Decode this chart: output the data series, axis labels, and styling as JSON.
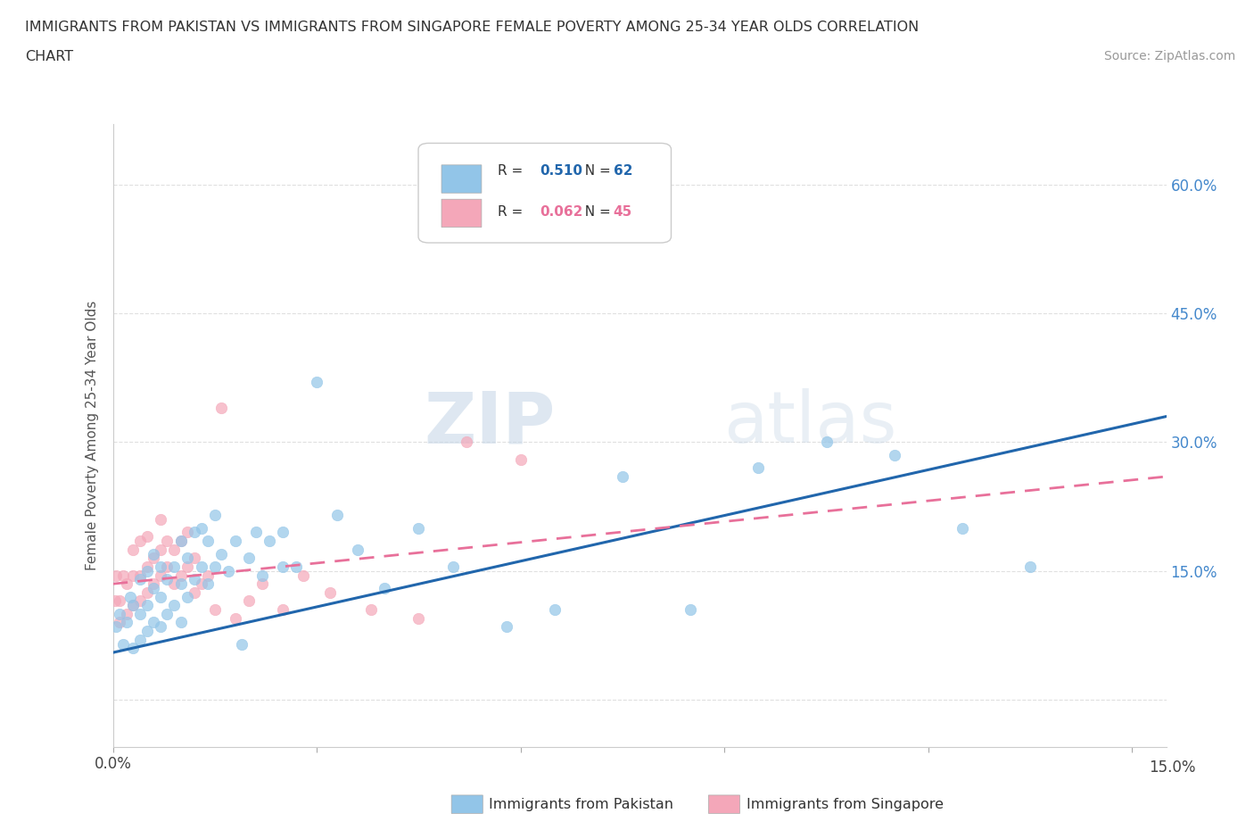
{
  "title_line1": "IMMIGRANTS FROM PAKISTAN VS IMMIGRANTS FROM SINGAPORE FEMALE POVERTY AMONG 25-34 YEAR OLDS CORRELATION",
  "title_line2": "CHART",
  "source": "Source: ZipAtlas.com",
  "xlim": [
    0.0,
    0.155
  ],
  "ylim": [
    -0.055,
    0.67
  ],
  "xticks": [
    0.0,
    0.03,
    0.06,
    0.09,
    0.12,
    0.15
  ],
  "yticks": [
    0.0,
    0.15,
    0.3,
    0.45,
    0.6
  ],
  "ytick_labels_right": [
    "",
    "15.0%",
    "30.0%",
    "45.0%",
    "60.0%"
  ],
  "pakistan_color": "#92c5e8",
  "singapore_color": "#f4a7b9",
  "pakistan_line_color": "#2166ac",
  "singapore_line_color": "#e8709a",
  "pakistan_R": 0.51,
  "pakistan_N": 62,
  "singapore_R": 0.062,
  "singapore_N": 45,
  "pakistan_scatter_x": [
    0.0005,
    0.001,
    0.0015,
    0.002,
    0.0025,
    0.003,
    0.003,
    0.004,
    0.004,
    0.004,
    0.005,
    0.005,
    0.005,
    0.006,
    0.006,
    0.006,
    0.007,
    0.007,
    0.007,
    0.008,
    0.008,
    0.009,
    0.009,
    0.01,
    0.01,
    0.01,
    0.011,
    0.011,
    0.012,
    0.012,
    0.013,
    0.013,
    0.014,
    0.014,
    0.015,
    0.015,
    0.016,
    0.017,
    0.018,
    0.019,
    0.02,
    0.021,
    0.022,
    0.023,
    0.025,
    0.025,
    0.027,
    0.03,
    0.033,
    0.036,
    0.04,
    0.045,
    0.05,
    0.058,
    0.065,
    0.075,
    0.085,
    0.095,
    0.105,
    0.115,
    0.125,
    0.135
  ],
  "pakistan_scatter_y": [
    0.085,
    0.1,
    0.065,
    0.09,
    0.12,
    0.06,
    0.11,
    0.07,
    0.1,
    0.14,
    0.08,
    0.11,
    0.15,
    0.09,
    0.13,
    0.17,
    0.085,
    0.12,
    0.155,
    0.1,
    0.14,
    0.11,
    0.155,
    0.09,
    0.135,
    0.185,
    0.12,
    0.165,
    0.14,
    0.195,
    0.155,
    0.2,
    0.135,
    0.185,
    0.155,
    0.215,
    0.17,
    0.15,
    0.185,
    0.065,
    0.165,
    0.195,
    0.145,
    0.185,
    0.195,
    0.155,
    0.155,
    0.37,
    0.215,
    0.175,
    0.13,
    0.2,
    0.155,
    0.085,
    0.105,
    0.26,
    0.105,
    0.27,
    0.3,
    0.285,
    0.2,
    0.155
  ],
  "singapore_scatter_x": [
    0.0003,
    0.0005,
    0.001,
    0.001,
    0.0015,
    0.002,
    0.002,
    0.003,
    0.003,
    0.003,
    0.004,
    0.004,
    0.004,
    0.005,
    0.005,
    0.005,
    0.006,
    0.006,
    0.007,
    0.007,
    0.007,
    0.008,
    0.008,
    0.009,
    0.009,
    0.01,
    0.01,
    0.011,
    0.011,
    0.012,
    0.012,
    0.013,
    0.014,
    0.015,
    0.016,
    0.018,
    0.02,
    0.022,
    0.025,
    0.028,
    0.032,
    0.038,
    0.045,
    0.052,
    0.06
  ],
  "singapore_scatter_y": [
    0.115,
    0.145,
    0.09,
    0.115,
    0.145,
    0.1,
    0.135,
    0.11,
    0.145,
    0.175,
    0.115,
    0.145,
    0.185,
    0.125,
    0.155,
    0.19,
    0.135,
    0.165,
    0.145,
    0.175,
    0.21,
    0.155,
    0.185,
    0.135,
    0.175,
    0.145,
    0.185,
    0.155,
    0.195,
    0.125,
    0.165,
    0.135,
    0.145,
    0.105,
    0.34,
    0.095,
    0.115,
    0.135,
    0.105,
    0.145,
    0.125,
    0.105,
    0.095,
    0.3,
    0.28
  ],
  "pakistan_trend_x": [
    0.0,
    0.155
  ],
  "pakistan_trend_y": [
    0.055,
    0.33
  ],
  "singapore_trend_x": [
    0.0,
    0.155
  ],
  "singapore_trend_y": [
    0.135,
    0.26
  ],
  "grid_color": "#e0e0e0",
  "watermark_zip": "ZIP",
  "watermark_atlas": "atlas"
}
